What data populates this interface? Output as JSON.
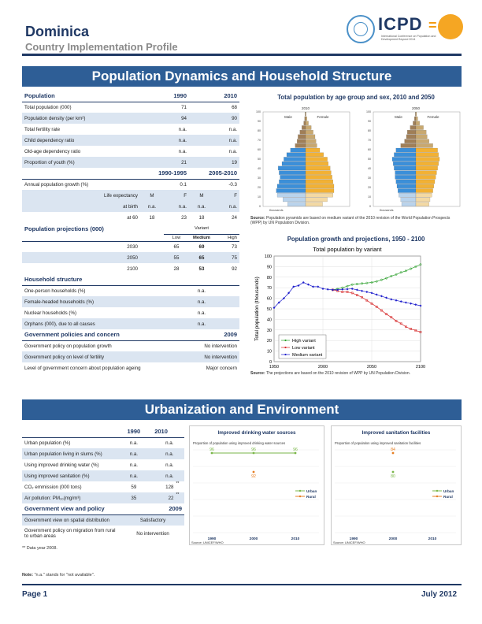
{
  "header": {
    "country": "Dominica",
    "subtitle": "Country Implementation Profile",
    "logo_text": "ICPD",
    "logo_tagline": "International Conference on Population and Development Beyond 2014"
  },
  "sections": {
    "population": "Population Dynamics and Household Structure",
    "urban": "Urbanization and Environment"
  },
  "population_table": {
    "header": [
      "Population",
      "1990",
      "2010"
    ],
    "rows": [
      [
        "Total population (000)",
        "71",
        "68"
      ],
      [
        "Population density (per km²)",
        "94",
        "90"
      ],
      [
        "Total fertility rate",
        "n.a.",
        "n.a."
      ],
      [
        "Child dependency ratio",
        "n.a.",
        "n.a."
      ],
      [
        "Old-age dependency ratio",
        "n.a.",
        "n.a."
      ],
      [
        "Proportion of youth (%)",
        "21",
        "19"
      ]
    ],
    "period_header": [
      "1990-1995",
      "2005-2010"
    ],
    "growth_row": [
      "Annual population growth (%)",
      "0.1",
      "-0.3"
    ],
    "life_header": [
      "Life expectancy",
      "M",
      "F",
      "M",
      "F"
    ],
    "life_rows": [
      [
        "at birth",
        "n.a.",
        "n.a.",
        "n.a.",
        "n.a."
      ],
      [
        "at 60",
        "18",
        "23",
        "18",
        "24"
      ]
    ],
    "projections_title": "Population projections (000)",
    "variant_label": "Variant",
    "variant_cols": [
      "Low",
      "Medium",
      "High"
    ],
    "projection_rows": [
      [
        "2030",
        "65",
        "69",
        "73"
      ],
      [
        "2050",
        "55",
        "65",
        "75"
      ],
      [
        "2100",
        "28",
        "53",
        "92"
      ]
    ],
    "household_title": "Household structure",
    "household_rows": [
      [
        "One-person households (%)",
        "n.a."
      ],
      [
        "Female-headed households (%)",
        "n.a."
      ],
      [
        "Nuclear households (%)",
        "n.a."
      ],
      [
        "Orphans (000), due to all causes",
        "n.a."
      ]
    ],
    "policy_title": "Government policies and concern",
    "policy_year": "2009",
    "policy_rows": [
      [
        "Government policy on population growth",
        "No intervention"
      ],
      [
        "Government policy on level of fertility",
        "No intervention"
      ],
      [
        "Level of government concern about population ageing",
        "Major concern"
      ]
    ]
  },
  "urban_table": {
    "header": [
      "",
      "1990",
      "2010"
    ],
    "rows": [
      [
        "Urban population (%)",
        "n.a.",
        "n.a.",
        ""
      ],
      [
        "Urban population living in slums (%)",
        "n.a.",
        "n.a.",
        ""
      ],
      [
        "Using improved drinking water (%)",
        "n.a.",
        "n.a.",
        ""
      ],
      [
        "Using improved sanitation (%)",
        "n.a.",
        "n.a.",
        ""
      ],
      [
        "CO₂ emmission (000 tons)",
        "59",
        "128",
        "**"
      ],
      [
        "Air pollution: PM₁₀(mg/m³)",
        "35",
        "22",
        "**"
      ]
    ],
    "policy_title": "Government view and policy",
    "policy_year": "2009",
    "policy_rows": [
      [
        "Government view on spatial distribution",
        "Satisfactory"
      ],
      [
        "Government policy on migration from rural to urban areas",
        "No intervention"
      ]
    ],
    "footnote": "** Data year 2008."
  },
  "pyramid": {
    "title": "Total population by age group and sex, 2010 and 2050",
    "years": [
      "2010",
      "2050"
    ],
    "male_label": "Male",
    "female_label": "Female",
    "age_labels": [
      "0",
      "10",
      "20",
      "30",
      "40",
      "50",
      "60",
      "70",
      "80",
      "90",
      "100"
    ],
    "x_label": "thousands",
    "x_label_2": "thousands",
    "source_bold": "Source:",
    "source_text": "Population pyramids are based on medium variant of the 2010 revision of the World Population Prospects (WPP) by UN Population Division.",
    "colors": {
      "male": "#3b8fd9",
      "female": "#f2b134",
      "male_light": "#b9d3ec",
      "female_light": "#f3d9a4",
      "old": "#a07f58"
    }
  },
  "growth": {
    "title": "Population growth and projections, 1950 - 2100",
    "source_bold": "Source:",
    "source_text": "The projections are based on the 2010 revision of WPP by UN Population Division."
  },
  "chart_data": [
    {
      "type": "line",
      "title": "Total population by variant",
      "xlabel": "",
      "ylabel": "Total population (thousands)",
      "xlim": [
        1950,
        2100
      ],
      "ylim": [
        0,
        100
      ],
      "xticks": [
        1950,
        2000,
        2050,
        2100
      ],
      "yticks": [
        0,
        10,
        20,
        30,
        40,
        50,
        60,
        70,
        80,
        90,
        100
      ],
      "legend": "bottom-left",
      "series": [
        {
          "name": "High variant",
          "color": "#2ca02c",
          "marker": "circle",
          "x": [
            2010,
            2015,
            2020,
            2025,
            2030,
            2035,
            2040,
            2045,
            2050,
            2055,
            2060,
            2065,
            2070,
            2075,
            2080,
            2085,
            2090,
            2095,
            2100
          ],
          "y": [
            68,
            69,
            70,
            71.5,
            73,
            73.5,
            74,
            74.5,
            75,
            76,
            77.5,
            79,
            81,
            82.5,
            84.5,
            86,
            88,
            90,
            92
          ]
        },
        {
          "name": "Low variant",
          "color": "#d62728",
          "marker": "square",
          "x": [
            2010,
            2015,
            2020,
            2025,
            2030,
            2035,
            2040,
            2045,
            2050,
            2055,
            2060,
            2065,
            2070,
            2075,
            2080,
            2085,
            2090,
            2095,
            2100
          ],
          "y": [
            68,
            67,
            66,
            66,
            65,
            63,
            61,
            58,
            55,
            52,
            48.5,
            45,
            42,
            38.5,
            36,
            33,
            31,
            29.5,
            28
          ]
        },
        {
          "name": "Medium variant",
          "color": "#1f1fcc",
          "marker": "diamond",
          "x": [
            1950,
            1955,
            1960,
            1965,
            1970,
            1975,
            1980,
            1985,
            1990,
            1995,
            2000,
            2005,
            2010,
            2015,
            2020,
            2025,
            2030,
            2035,
            2040,
            2045,
            2050,
            2055,
            2060,
            2065,
            2070,
            2075,
            2080,
            2085,
            2090,
            2095,
            2100
          ],
          "y": [
            51,
            56,
            60,
            65,
            71,
            72,
            75,
            73,
            71,
            71,
            69,
            68.5,
            68,
            68,
            68.5,
            68.7,
            69,
            68,
            67,
            66,
            65,
            63.5,
            62,
            60.5,
            59,
            58,
            57,
            56,
            55,
            54,
            53
          ]
        }
      ]
    },
    {
      "type": "line",
      "title": "Improved drinking water sources",
      "subtitle": "Proportion of population using improved drinking water sources",
      "source": "Source: UNICEF/WHO",
      "x": [
        1990,
        2000,
        2010
      ],
      "xticks": [
        "1990",
        "2000",
        "2010"
      ],
      "legend": "right",
      "series": [
        {
          "name": "Urban",
          "color": "#7ab648",
          "x": [
            1990,
            2000,
            2010
          ],
          "values": [
            96,
            96,
            96
          ],
          "labels": [
            "96",
            "96",
            "96"
          ]
        },
        {
          "name": "Rural",
          "color": "#e67e22",
          "x": [
            2000
          ],
          "values": [
            92
          ],
          "labels": [
            "92"
          ]
        }
      ]
    },
    {
      "type": "line",
      "title": "Improved sanitation facilities",
      "subtitle": "Proportion of population using improved sanitation facilities",
      "source": "Source: UNICEF/WHO",
      "x": [
        1990,
        2000,
        2010
      ],
      "xticks": [
        "1990",
        "2000",
        "2010"
      ],
      "legend": "right",
      "series": [
        {
          "name": "Urban",
          "color": "#7ab648",
          "x": [
            2000
          ],
          "values": [
            80
          ],
          "labels": [
            "80"
          ]
        },
        {
          "name": "Rural",
          "color": "#e67e22",
          "x": [
            2000
          ],
          "values": [
            84
          ],
          "labels": [
            "84"
          ]
        }
      ]
    }
  ],
  "note": {
    "bold": "Note:",
    "text": "\"n.a.\" stands for \"not available\"."
  },
  "footer": {
    "page": "Page 1",
    "date": "July 2012"
  }
}
